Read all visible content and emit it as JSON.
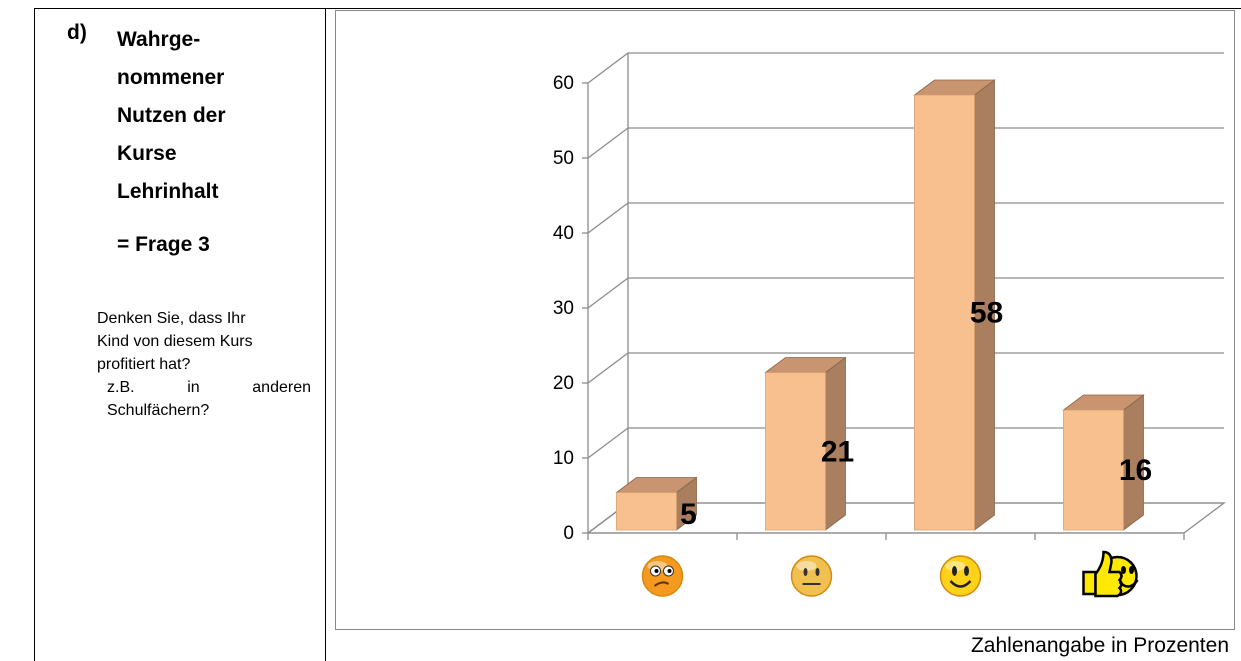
{
  "left": {
    "label": "d)",
    "heading_lines": [
      "Wahrge-",
      "nommener",
      "Nutzen der",
      "Kurse",
      "Lehrinhalt"
    ],
    "frage": "= Frage 3",
    "question_line1": "Denken Sie, dass Ihr",
    "question_line2": "Kind von diesem Kurs",
    "question_line3": "profitiert hat?",
    "question_words": [
      "z.B.",
      "in",
      "anderen"
    ],
    "question_line5": "Schulfächern?"
  },
  "footnote": "Zahlenangabe in Prozenten",
  "colors": {
    "bar_front": "#f9c08f",
    "bar_side": "#a97f5f",
    "bar_top": "#c99470",
    "grid": "#8c8c8c"
  },
  "chart_data": {
    "type": "bar",
    "categories": [
      "frowning-face-icon",
      "neutral-face-icon",
      "smiling-face-icon",
      "thumbs-up-face-icon"
    ],
    "values": [
      5,
      21,
      58,
      16
    ],
    "ylim": [
      0,
      60
    ],
    "yticks": [
      0,
      10,
      20,
      30,
      40,
      50,
      60
    ],
    "grid": true,
    "style": "3d"
  }
}
